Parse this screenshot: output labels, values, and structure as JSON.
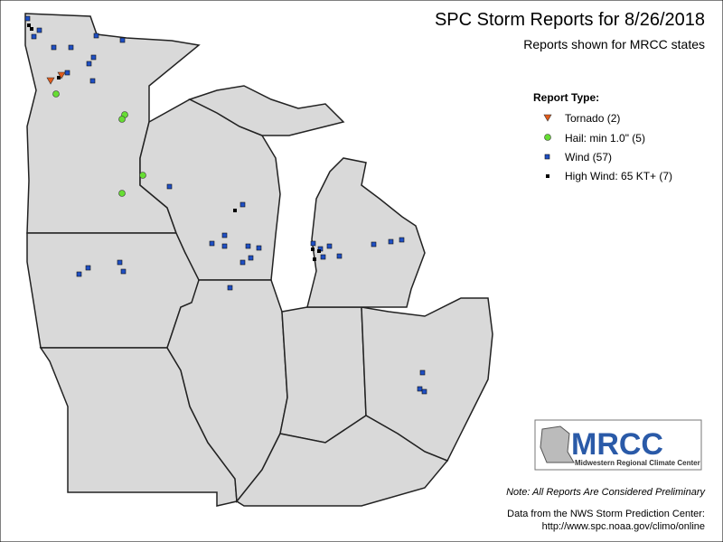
{
  "header": {
    "title": "SPC Storm Reports for 8/26/2018",
    "subtitle": "Reports shown for MRCC states"
  },
  "legend": {
    "title": "Report Type:",
    "items": [
      "Tornado (2)",
      "Hail: min 1.0\" (5)",
      "Wind (57)",
      "High Wind: 65 KT+ (7)"
    ]
  },
  "logo": {
    "name": "MRCC",
    "full_name": "Midwestern Regional Climate Center"
  },
  "footer": {
    "note": "Note: All Reports Are Considered Preliminary",
    "source": "Data from the NWS Storm Prediction Center:",
    "url": "http://www.spc.noaa.gov/climo/online"
  }
}
